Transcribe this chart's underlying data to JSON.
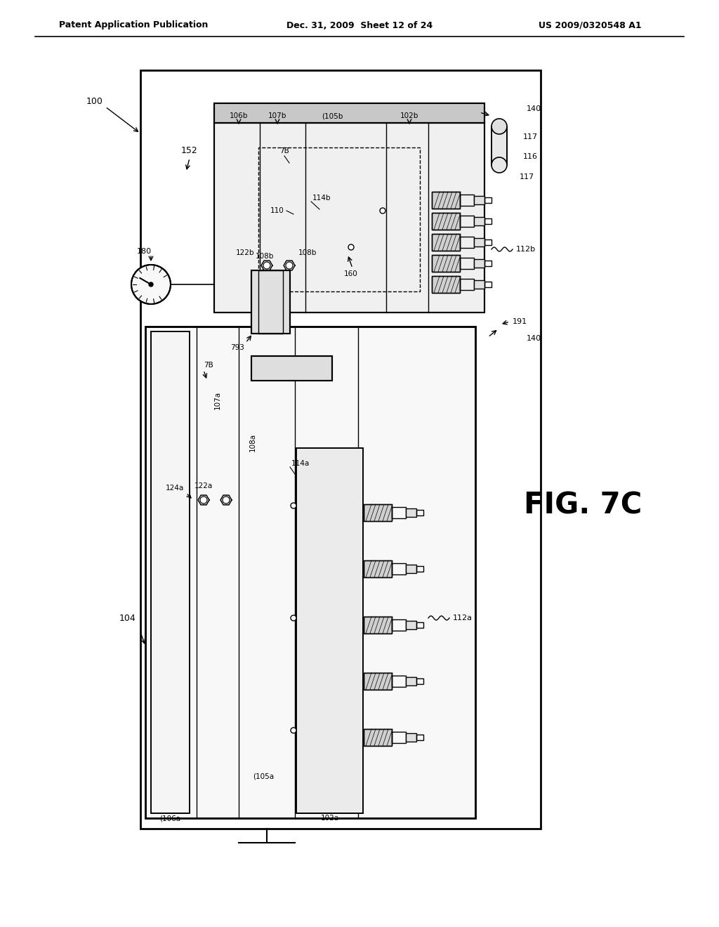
{
  "header_left": "Patent Application Publication",
  "header_mid": "Dec. 31, 2009  Sheet 12 of 24",
  "header_right": "US 2009/0320548 A1",
  "bg_color": "#ffffff",
  "fig_label": "FIG. 7C"
}
